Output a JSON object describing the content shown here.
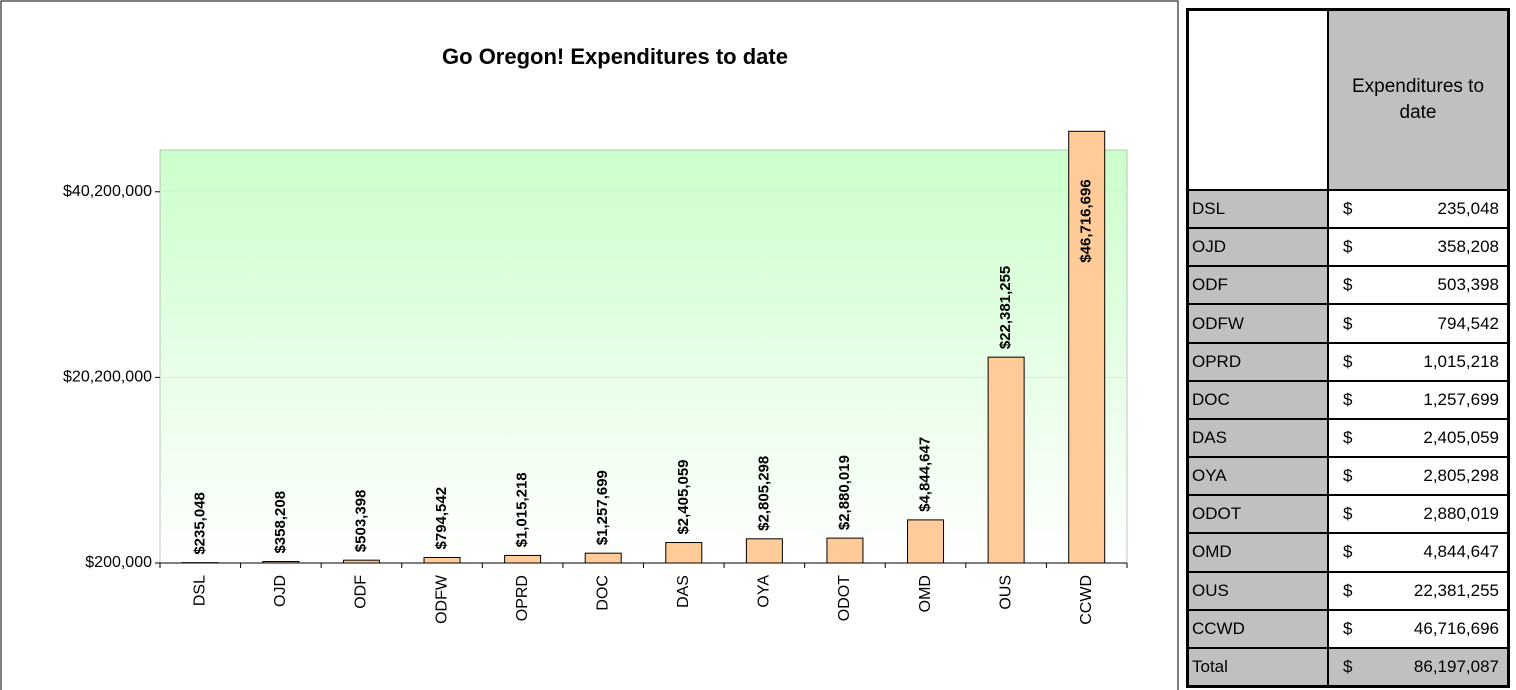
{
  "chart_data": {
    "type": "bar",
    "title": "Go Oregon! Expenditures to date",
    "categories": [
      "DSL",
      "OJD",
      "ODF",
      "ODFW",
      "OPRD",
      "DOC",
      "DAS",
      "OYA",
      "ODOT",
      "OMD",
      "OUS",
      "CCWD"
    ],
    "values": [
      235048,
      358208,
      503398,
      794542,
      1015218,
      1257699,
      2405059,
      2805298,
      2880019,
      4844647,
      22381255,
      46716696
    ],
    "value_labels": [
      "$235,048",
      "$358,208",
      "$503,398",
      "$794,542",
      "$1,015,218",
      "$1,257,699",
      "$2,405,059",
      "$2,805,298",
      "$2,880,019",
      "$4,844,647",
      "$22,381,255",
      "$46,716,696"
    ],
    "color": "#ffcc99",
    "ylim": [
      200000,
      44700000
    ],
    "yticks": [
      {
        "value": 200000,
        "label": "$200,000"
      },
      {
        "value": 20200000,
        "label": "$20,200,000"
      },
      {
        "value": 40200000,
        "label": "$40,200,000"
      }
    ],
    "grid": true
  },
  "table": {
    "header": [
      "",
      "Expenditures to date"
    ],
    "rows": [
      [
        "DSL",
        "$",
        "235,048"
      ],
      [
        "OJD",
        "$",
        "358,208"
      ],
      [
        "ODF",
        "$",
        "503,398"
      ],
      [
        "ODFW",
        "$",
        "794,542"
      ],
      [
        "OPRD",
        "$",
        "1,015,218"
      ],
      [
        "DOC",
        "$",
        "1,257,699"
      ],
      [
        "DAS",
        "$",
        "2,405,059"
      ],
      [
        "OYA",
        "$",
        "2,805,298"
      ],
      [
        "ODOT",
        "$",
        "2,880,019"
      ],
      [
        "OMD",
        "$",
        "4,844,647"
      ],
      [
        "OUS",
        "$",
        "22,381,255"
      ],
      [
        "CCWD",
        "$",
        "46,716,696"
      ],
      [
        "Total",
        "$",
        "86,197,087"
      ]
    ]
  }
}
